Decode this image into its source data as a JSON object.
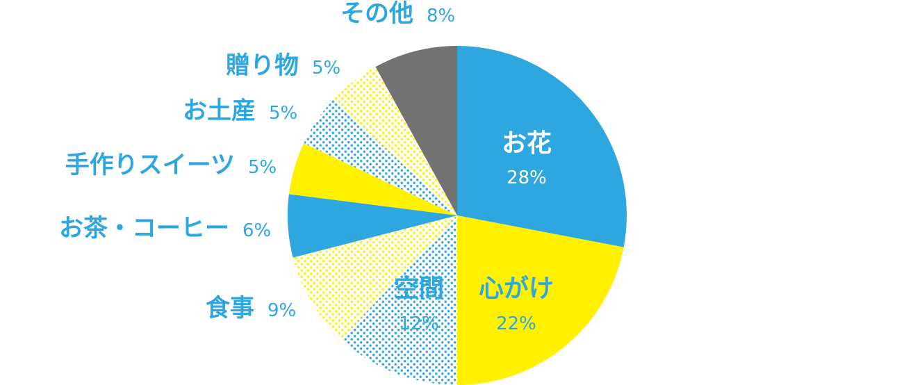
{
  "colors": {
    "blue": "#2ea7e0",
    "yellow": "#fff100",
    "gray": "#737373",
    "white": "#ffffff"
  },
  "chart_data": {
    "type": "pie",
    "title": "",
    "start": "12 o'clock",
    "direction": "clockwise",
    "slices": [
      {
        "label": "お花",
        "value": 28,
        "pct_label": "28%",
        "fill": "blue-solid",
        "label_position": "inside"
      },
      {
        "label": "心がけ",
        "value": 22,
        "pct_label": "22%",
        "fill": "yellow-solid",
        "label_position": "inside"
      },
      {
        "label": "空間",
        "value": 12,
        "pct_label": "12%",
        "fill": "blue-dots",
        "label_position": "inside"
      },
      {
        "label": "食事",
        "value": 9,
        "pct_label": "9%",
        "fill": "yellow-dots",
        "label_position": "outside"
      },
      {
        "label": "お茶・コーヒー",
        "value": 6,
        "pct_label": "6%",
        "fill": "blue-solid",
        "label_position": "outside"
      },
      {
        "label": "手作りスイーツ",
        "value": 5,
        "pct_label": "5%",
        "fill": "yellow-solid",
        "label_position": "outside"
      },
      {
        "label": "お土産",
        "value": 5,
        "pct_label": "5%",
        "fill": "blue-dots",
        "label_position": "outside"
      },
      {
        "label": "贈り物",
        "value": 5,
        "pct_label": "5%",
        "fill": "yellow-dots",
        "label_position": "outside"
      },
      {
        "label": "その他",
        "value": 8,
        "pct_label": "8%",
        "fill": "gray-solid",
        "label_position": "outside"
      }
    ]
  }
}
